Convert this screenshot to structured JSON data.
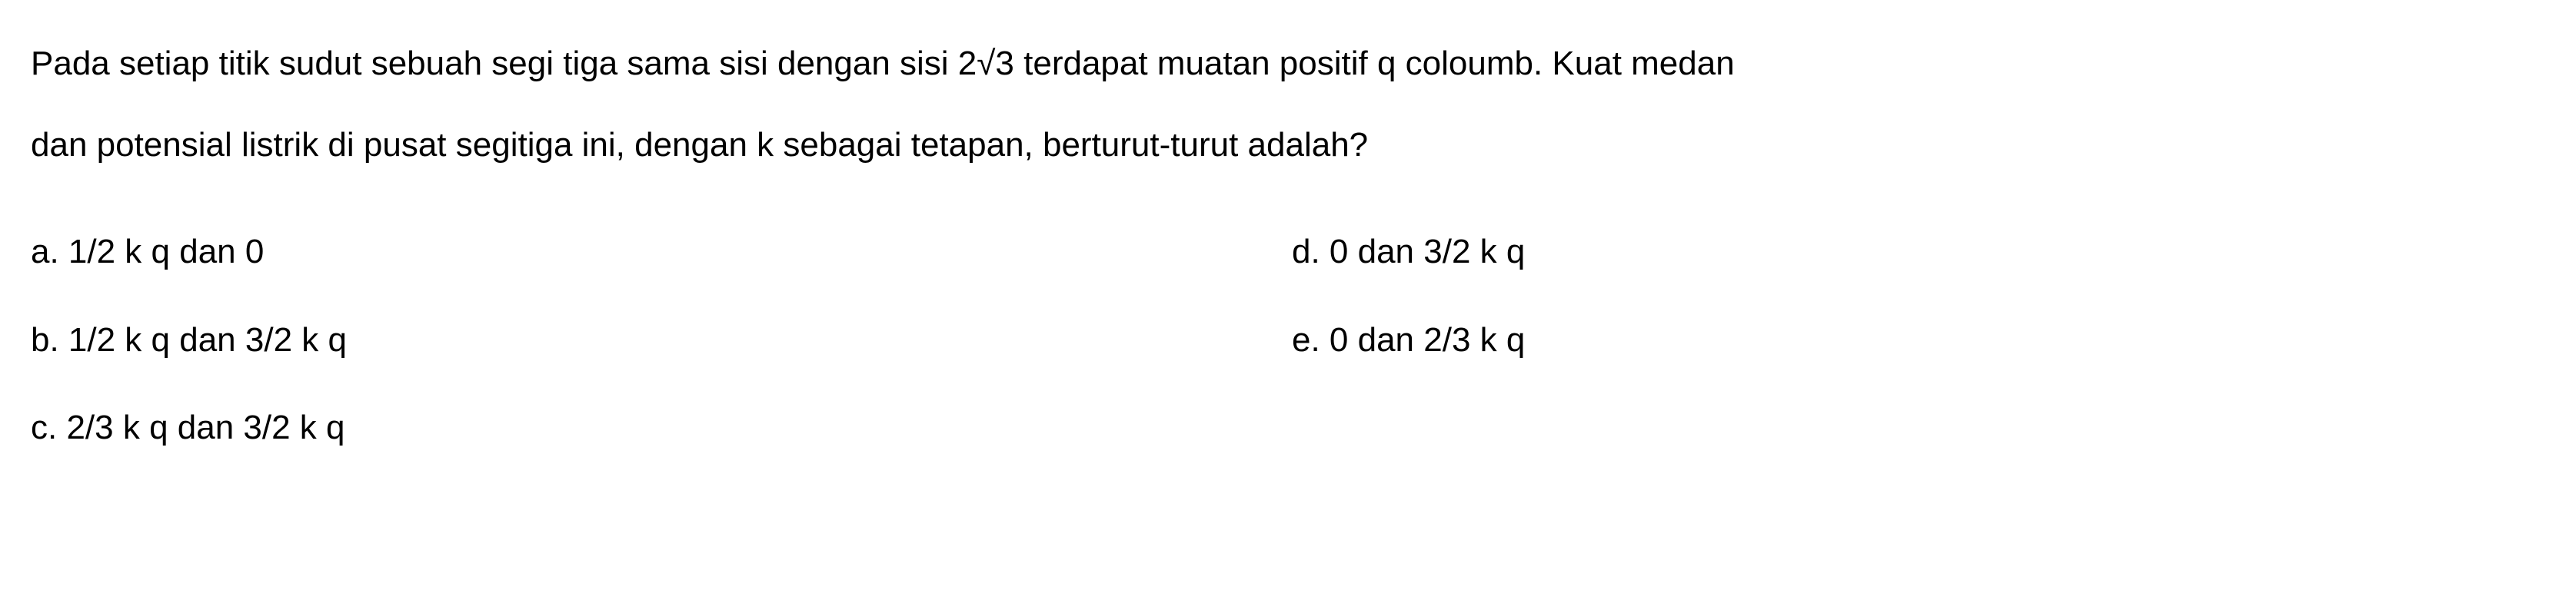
{
  "question": {
    "line1": "Pada setiap titik sudut sebuah segi tiga sama sisi dengan sisi 2√3 terdapat muatan positif q coloumb. Kuat medan",
    "line2": "dan potensial listrik di pusat segitiga ini, dengan k sebagai tetapan, berturut-turut adalah?"
  },
  "options": {
    "a": "a. 1/2 k q dan 0",
    "b": "b. 1/2 k q dan 3/2 k q",
    "c": "c. 2/3 k q dan 3/2 k q",
    "d": "d. 0 dan 3/2 k q",
    "e": "e. 0 dan 2/3 k q"
  },
  "styling": {
    "font_size": 44,
    "text_color": "#000000",
    "background_color": "#ffffff",
    "font_family": "Arial",
    "line_height": 2.4
  }
}
